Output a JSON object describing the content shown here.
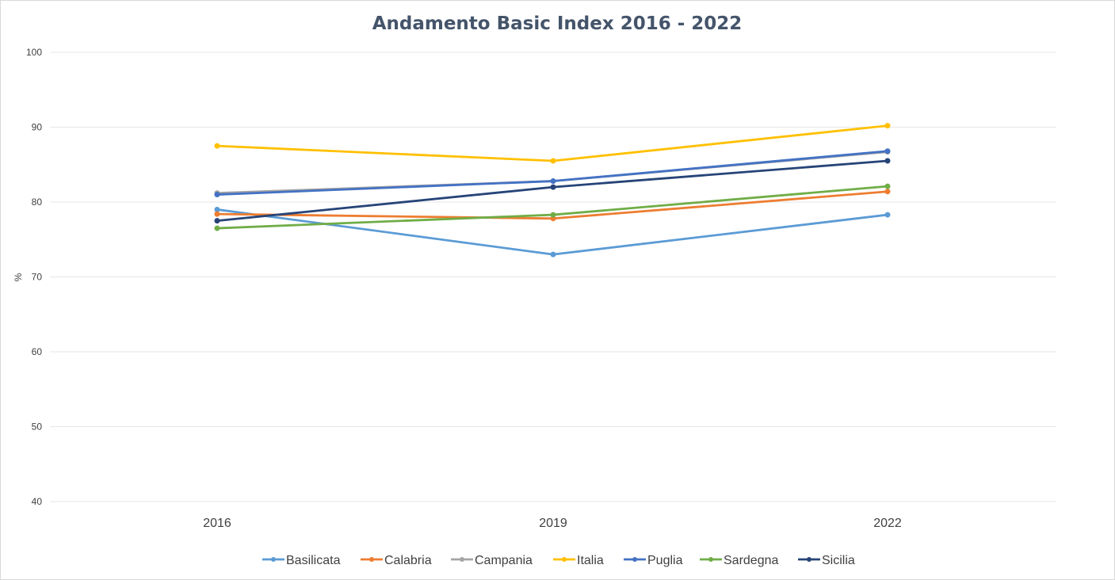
{
  "chart_data": {
    "type": "line",
    "title": "Andamento Basic Index 2016 - 2022",
    "xlabel": "",
    "ylabel": "%",
    "categories": [
      "2016",
      "2019",
      "2022"
    ],
    "ylim": [
      40,
      100
    ],
    "yticks": [
      40,
      50,
      60,
      70,
      80,
      90,
      100
    ],
    "grid": true,
    "legend_position": "bottom",
    "series": [
      {
        "name": "Basilicata",
        "color": "#5b9bd5",
        "values": [
          79.0,
          73.0,
          78.3
        ]
      },
      {
        "name": "Calabria",
        "color": "#ed7d31",
        "values": [
          78.4,
          77.8,
          81.4
        ]
      },
      {
        "name": "Campania",
        "color": "#a5a5a5",
        "values": [
          81.2,
          82.8,
          86.7
        ]
      },
      {
        "name": "Italia",
        "color": "#ffc000",
        "values": [
          87.5,
          85.5,
          90.2
        ]
      },
      {
        "name": "Puglia",
        "color": "#4472c4",
        "values": [
          81.0,
          82.8,
          86.8
        ]
      },
      {
        "name": "Sardegna",
        "color": "#70ad47",
        "values": [
          76.5,
          78.3,
          82.1
        ]
      },
      {
        "name": "Sicilia",
        "color": "#264478",
        "values": [
          77.5,
          82.0,
          85.5
        ]
      }
    ]
  }
}
